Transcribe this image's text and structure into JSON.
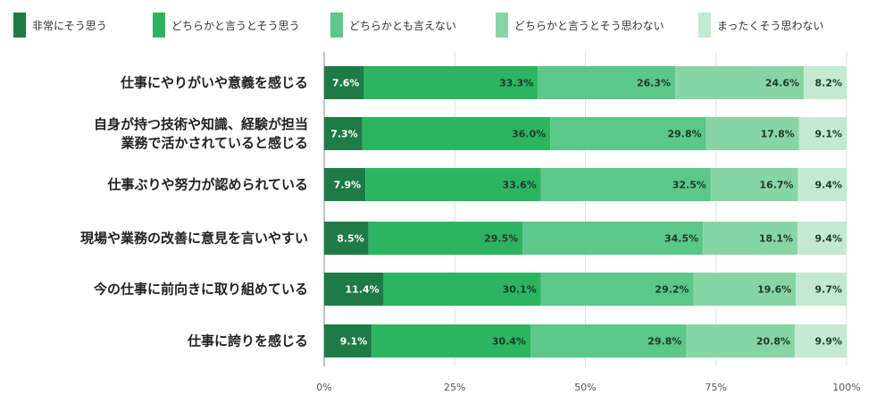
{
  "chart_data": {
    "type": "bar",
    "orientation": "horizontal",
    "stacked": true,
    "title": "",
    "xlabel": "",
    "ylabel": "",
    "xlim": [
      0,
      100
    ],
    "grid": true,
    "legend_position": "top",
    "x_ticks": [
      "0%",
      "25%",
      "50%",
      "75%",
      "100%"
    ],
    "categories": [
      "仕事にやりがいや意義を感じる",
      "自身が持つ技術や知識、経験が担当\n業務で活かされていると感じる",
      "仕事ぶりや努力が認められている",
      "現場や業務の改善に意見を言いやすい",
      "今の仕事に前向きに取り組めている",
      "仕事に誇りを感じる"
    ],
    "series": [
      {
        "name": "非常にそう思う",
        "color": "#1e7b45",
        "values": [
          7.6,
          7.3,
          7.9,
          8.5,
          11.4,
          9.1
        ]
      },
      {
        "name": "どちらかと言うとそう思う",
        "color": "#2db461",
        "values": [
          33.3,
          36.0,
          33.6,
          29.5,
          30.1,
          30.4
        ]
      },
      {
        "name": "どちらかとも言えない",
        "color": "#5bc789",
        "values": [
          26.3,
          29.8,
          32.5,
          34.5,
          29.2,
          29.8
        ]
      },
      {
        "name": "どちらかと言うとそう思わない",
        "color": "#88d5a4",
        "values": [
          24.6,
          17.8,
          16.7,
          18.1,
          19.6,
          20.8
        ]
      },
      {
        "name": "まったくそう思わない",
        "color": "#c3ead1",
        "values": [
          8.2,
          9.1,
          9.4,
          9.4,
          9.7,
          9.9
        ]
      }
    ]
  }
}
